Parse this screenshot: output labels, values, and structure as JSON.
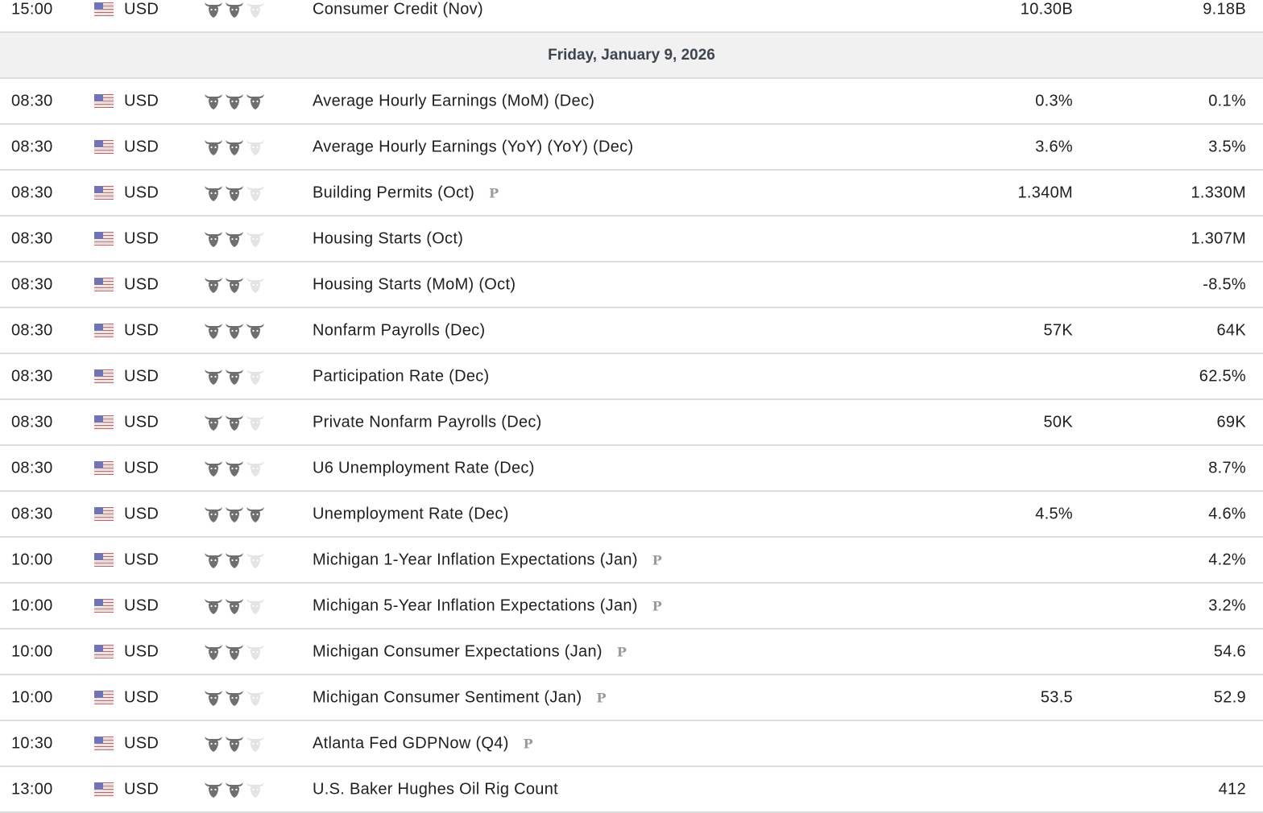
{
  "colors": {
    "bull_active": "#6f6f6f",
    "bull_inactive": "#e4e4e4",
    "date_bg": "#f1f1f1",
    "divider": "#dcdcdc"
  },
  "icons": {
    "importance": "bull-icon",
    "currency": "us-flag-icon",
    "preliminary": "preliminary-p-icon"
  },
  "preliminary_label": "P",
  "top_rows": [
    {
      "time": "15:00",
      "currency": "USD",
      "importance": 2,
      "event": "Consumer Credit (Nov)",
      "prelim": false,
      "forecast": "10.30B",
      "previous": "9.18B"
    }
  ],
  "date_header": "Friday, January 9, 2026",
  "rows": [
    {
      "time": "08:30",
      "currency": "USD",
      "importance": 3,
      "event": "Average Hourly Earnings (MoM) (Dec)",
      "prelim": false,
      "forecast": "0.3%",
      "previous": "0.1%"
    },
    {
      "time": "08:30",
      "currency": "USD",
      "importance": 2,
      "event": "Average Hourly Earnings (YoY) (YoY) (Dec)",
      "prelim": false,
      "forecast": "3.6%",
      "previous": "3.5%"
    },
    {
      "time": "08:30",
      "currency": "USD",
      "importance": 2,
      "event": "Building Permits (Oct)",
      "prelim": true,
      "forecast": "1.340M",
      "previous": "1.330M"
    },
    {
      "time": "08:30",
      "currency": "USD",
      "importance": 2,
      "event": "Housing Starts (Oct)",
      "prelim": false,
      "forecast": "",
      "previous": "1.307M"
    },
    {
      "time": "08:30",
      "currency": "USD",
      "importance": 2,
      "event": "Housing Starts (MoM) (Oct)",
      "prelim": false,
      "forecast": "",
      "previous": "-8.5%"
    },
    {
      "time": "08:30",
      "currency": "USD",
      "importance": 3,
      "event": "Nonfarm Payrolls (Dec)",
      "prelim": false,
      "forecast": "57K",
      "previous": "64K"
    },
    {
      "time": "08:30",
      "currency": "USD",
      "importance": 2,
      "event": "Participation Rate (Dec)",
      "prelim": false,
      "forecast": "",
      "previous": "62.5%"
    },
    {
      "time": "08:30",
      "currency": "USD",
      "importance": 2,
      "event": "Private Nonfarm Payrolls (Dec)",
      "prelim": false,
      "forecast": "50K",
      "previous": "69K"
    },
    {
      "time": "08:30",
      "currency": "USD",
      "importance": 2,
      "event": "U6 Unemployment Rate (Dec)",
      "prelim": false,
      "forecast": "",
      "previous": "8.7%"
    },
    {
      "time": "08:30",
      "currency": "USD",
      "importance": 3,
      "event": "Unemployment Rate (Dec)",
      "prelim": false,
      "forecast": "4.5%",
      "previous": "4.6%"
    },
    {
      "time": "10:00",
      "currency": "USD",
      "importance": 2,
      "event": "Michigan 1-Year Inflation Expectations (Jan)",
      "prelim": true,
      "forecast": "",
      "previous": "4.2%"
    },
    {
      "time": "10:00",
      "currency": "USD",
      "importance": 2,
      "event": "Michigan 5-Year Inflation Expectations (Jan)",
      "prelim": true,
      "forecast": "",
      "previous": "3.2%"
    },
    {
      "time": "10:00",
      "currency": "USD",
      "importance": 2,
      "event": "Michigan Consumer Expectations (Jan)",
      "prelim": true,
      "forecast": "",
      "previous": "54.6"
    },
    {
      "time": "10:00",
      "currency": "USD",
      "importance": 2,
      "event": "Michigan Consumer Sentiment (Jan)",
      "prelim": true,
      "forecast": "53.5",
      "previous": "52.9"
    },
    {
      "time": "10:30",
      "currency": "USD",
      "importance": 2,
      "event": "Atlanta Fed GDPNow (Q4)",
      "prelim": true,
      "forecast": "",
      "previous": ""
    },
    {
      "time": "13:00",
      "currency": "USD",
      "importance": 2,
      "event": "U.S. Baker Hughes Oil Rig Count",
      "prelim": false,
      "forecast": "",
      "previous": "412"
    }
  ]
}
